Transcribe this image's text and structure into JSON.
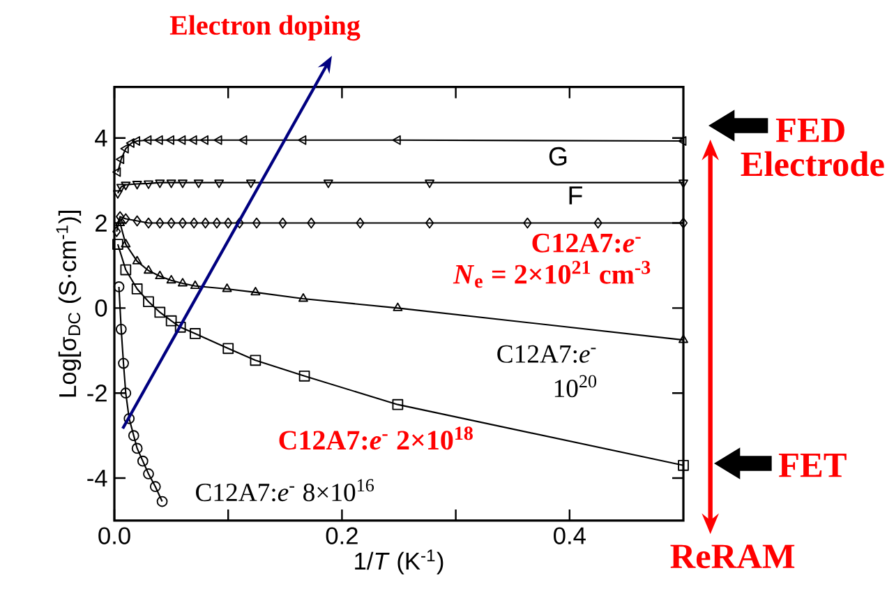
{
  "chart_data": {
    "type": "line",
    "xlabel": "1/*T* (K$^{-1}$)",
    "ylabel": "Log[σ$_{DC}$ (S·cm$^{-1}$)]",
    "xlim": [
      0,
      0.5
    ],
    "ylim": [
      -5,
      5.2
    ],
    "xticks": [
      {
        "value": 0,
        "label": "0.0"
      },
      {
        "value": 0.1,
        "label": null
      },
      {
        "value": 0.2,
        "label": "0.2"
      },
      {
        "value": 0.3,
        "label": null
      },
      {
        "value": 0.4,
        "label": "0.4"
      }
    ],
    "yticks": [
      -4,
      -2,
      0,
      2,
      4
    ],
    "legend": false,
    "series": [
      {
        "name": "G",
        "color": "#000000",
        "marker": "triangle-left",
        "x": [
          0.003,
          0.006,
          0.01,
          0.015,
          0.02,
          0.03,
          0.04,
          0.05,
          0.06,
          0.07,
          0.08,
          0.092,
          0.114,
          0.166,
          0.249,
          0.5
        ],
        "values": [
          3.2,
          3.5,
          3.75,
          3.88,
          3.93,
          3.95,
          3.95,
          3.95,
          3.95,
          3.95,
          3.95,
          3.95,
          3.95,
          3.95,
          3.95,
          3.93
        ]
      },
      {
        "name": "F",
        "color": "#000000",
        "marker": "triangle-down",
        "x": [
          0.003,
          0.006,
          0.01,
          0.02,
          0.03,
          0.04,
          0.05,
          0.06,
          0.074,
          0.092,
          0.12,
          0.188,
          0.277,
          0.5
        ],
        "values": [
          2.7,
          2.85,
          2.9,
          2.92,
          2.93,
          2.95,
          2.95,
          2.95,
          2.95,
          2.95,
          2.95,
          2.95,
          2.95,
          2.95
        ]
      },
      {
        "color": "#000000",
        "marker": "diamond",
        "x": [
          0.002,
          0.005,
          0.01,
          0.02,
          0.03,
          0.04,
          0.05,
          0.06,
          0.07,
          0.08,
          0.09,
          0.1,
          0.11,
          0.125,
          0.148,
          0.173,
          0.216,
          0.277,
          0.363,
          0.425,
          0.5
        ],
        "values": [
          1.8,
          2.15,
          2.1,
          2.05,
          2.0,
          2.0,
          2.0,
          2.0,
          2.0,
          2.0,
          2.0,
          2.0,
          2.0,
          2.0,
          2.0,
          2.0,
          2.0,
          2.0,
          2.0,
          2.0,
          2.0
        ]
      },
      {
        "color": "#000000",
        "marker": "triangle",
        "x": [
          0.005,
          0.01,
          0.02,
          0.03,
          0.04,
          0.05,
          0.06,
          0.071,
          0.099,
          0.124,
          0.166,
          0.249,
          0.5
        ],
        "values": [
          2.0,
          1.5,
          1.1,
          0.88,
          0.75,
          0.65,
          0.58,
          0.52,
          0.45,
          0.37,
          0.22,
          0.0,
          -0.75
        ]
      },
      {
        "color": "#000000",
        "marker": "square",
        "x": [
          0.003,
          0.01,
          0.02,
          0.03,
          0.04,
          0.05,
          0.058,
          0.071,
          0.1,
          0.124,
          0.167,
          0.249,
          0.5
        ],
        "values": [
          1.5,
          0.9,
          0.45,
          0.15,
          -0.1,
          -0.3,
          -0.45,
          -0.6,
          -0.95,
          -1.23,
          -1.6,
          -2.27,
          -3.7
        ]
      },
      {
        "color": "#000000",
        "marker": "circle",
        "x": [
          0.004,
          0.006,
          0.008,
          0.01,
          0.013,
          0.017,
          0.02,
          0.025,
          0.03,
          0.036,
          0.042
        ],
        "values": [
          0.5,
          -0.5,
          -1.3,
          -2.0,
          -2.6,
          -3.0,
          -3.3,
          -3.6,
          -3.9,
          -4.2,
          -4.55
        ]
      }
    ],
    "annotations": [
      "Electron doping",
      "C12A7:*e*$^{-}$",
      "*N*$_{e}$ = 2×10$^{21}$ cm$^{-3}$",
      "C12A7:*e*$^{-}$",
      "10$^{20}$",
      "C12A7:*e*$^{-}$ 2×10$^{18}$",
      "C12A7:*e*$^{-}$    8×10$^{16}$",
      "FED",
      "Electrode",
      "FET",
      "ReRAM"
    ]
  }
}
